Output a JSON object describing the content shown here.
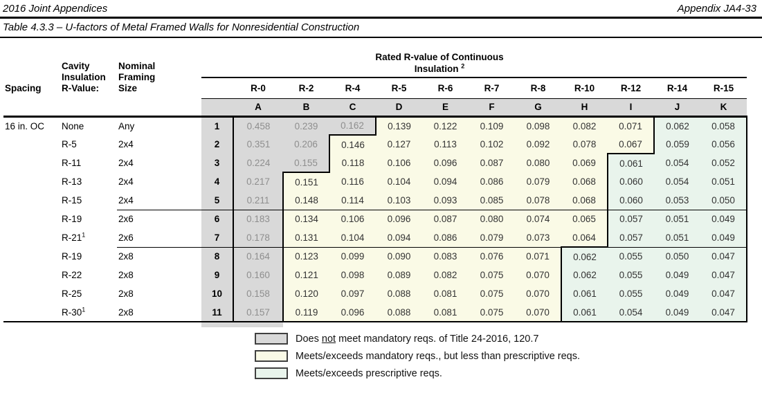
{
  "page": {
    "doc_header_left": "2016 Joint Appendices",
    "doc_header_right": "Appendix JA4-33",
    "table_title": "Table 4.3.3 – U-factors of Metal Framed Walls for Nonresidential Construction"
  },
  "table": {
    "left_headers": {
      "spacing": "Spacing",
      "cavity_lines": [
        "Cavity",
        "Insulation",
        "R-Value:"
      ],
      "framing_lines": [
        "Nominal",
        "Framing",
        "Size"
      ]
    },
    "band_title_line1": "Rated R-value of Continuous",
    "band_title_line2": "Insulation",
    "band_title_sup": "2",
    "r_labels": [
      "R-0",
      "R-2",
      "R-4",
      "R-5",
      "R-6",
      "R-7",
      "R-8",
      "R-10",
      "R-12",
      "R-14",
      "R-15"
    ],
    "letters": [
      "A",
      "B",
      "C",
      "D",
      "E",
      "F",
      "G",
      "H",
      "I",
      "J",
      "K"
    ],
    "separator_before_rows": [
      5,
      7
    ],
    "rows": [
      {
        "num": "1",
        "spacing": "16 in. OC",
        "cavity": "None",
        "cavity_sup": "",
        "framing": "Any",
        "regions": "gggyyyyyynn",
        "values": [
          "0.458",
          "0.239",
          "0.162",
          "0.139",
          "0.122",
          "0.109",
          "0.098",
          "0.082",
          "0.071",
          "0.062",
          "0.058"
        ]
      },
      {
        "num": "2",
        "spacing": "",
        "cavity": "R-5",
        "cavity_sup": "",
        "framing": "2x4",
        "regions": "ggyyyyyyynn",
        "values": [
          "0.351",
          "0.206",
          "0.146",
          "0.127",
          "0.113",
          "0.102",
          "0.092",
          "0.078",
          "0.067",
          "0.059",
          "0.056"
        ]
      },
      {
        "num": "3",
        "spacing": "",
        "cavity": "R-11",
        "cavity_sup": "",
        "framing": "2x4",
        "regions": "ggyyyyyynnn",
        "values": [
          "0.224",
          "0.155",
          "0.118",
          "0.106",
          "0.096",
          "0.087",
          "0.080",
          "0.069",
          "0.061",
          "0.054",
          "0.052"
        ]
      },
      {
        "num": "4",
        "spacing": "",
        "cavity": "R-13",
        "cavity_sup": "",
        "framing": "2x4",
        "regions": "gyyyyyyynnn",
        "values": [
          "0.217",
          "0.151",
          "0.116",
          "0.104",
          "0.094",
          "0.086",
          "0.079",
          "0.068",
          "0.060",
          "0.054",
          "0.051"
        ]
      },
      {
        "num": "5",
        "spacing": "",
        "cavity": "R-15",
        "cavity_sup": "",
        "framing": "2x4",
        "regions": "gyyyyyyynnn",
        "values": [
          "0.211",
          "0.148",
          "0.114",
          "0.103",
          "0.093",
          "0.085",
          "0.078",
          "0.068",
          "0.060",
          "0.053",
          "0.050"
        ]
      },
      {
        "num": "6",
        "spacing": "",
        "cavity": "R-19",
        "cavity_sup": "",
        "framing": "2x6",
        "regions": "gyyyyyyynnn",
        "values": [
          "0.183",
          "0.134",
          "0.106",
          "0.096",
          "0.087",
          "0.080",
          "0.074",
          "0.065",
          "0.057",
          "0.051",
          "0.049"
        ]
      },
      {
        "num": "7",
        "spacing": "",
        "cavity": "R-21",
        "cavity_sup": "1",
        "framing": "2x6",
        "regions": "gyyyyyyynnn",
        "values": [
          "0.178",
          "0.131",
          "0.104",
          "0.094",
          "0.086",
          "0.079",
          "0.073",
          "0.064",
          "0.057",
          "0.051",
          "0.049"
        ]
      },
      {
        "num": "8",
        "spacing": "",
        "cavity": "R-19",
        "cavity_sup": "",
        "framing": "2x8",
        "regions": "gyyyyyynnnn",
        "values": [
          "0.164",
          "0.123",
          "0.099",
          "0.090",
          "0.083",
          "0.076",
          "0.071",
          "0.062",
          "0.055",
          "0.050",
          "0.047"
        ]
      },
      {
        "num": "9",
        "spacing": "",
        "cavity": "R-22",
        "cavity_sup": "",
        "framing": "2x8",
        "regions": "gyyyyyynnnn",
        "values": [
          "0.160",
          "0.121",
          "0.098",
          "0.089",
          "0.082",
          "0.075",
          "0.070",
          "0.062",
          "0.055",
          "0.049",
          "0.047"
        ]
      },
      {
        "num": "10",
        "spacing": "",
        "cavity": "R-25",
        "cavity_sup": "",
        "framing": "2x8",
        "regions": "gyyyyyynnnn",
        "values": [
          "0.158",
          "0.120",
          "0.097",
          "0.088",
          "0.081",
          "0.075",
          "0.070",
          "0.061",
          "0.055",
          "0.049",
          "0.047"
        ]
      },
      {
        "num": "11",
        "spacing": "",
        "cavity": "R-30",
        "cavity_sup": "1",
        "framing": "2x8",
        "regions": "gyyyyyynnnn",
        "values": [
          "0.157",
          "0.119",
          "0.096",
          "0.088",
          "0.081",
          "0.075",
          "0.070",
          "0.061",
          "0.054",
          "0.049",
          "0.047"
        ]
      }
    ]
  },
  "legend": {
    "items": [
      {
        "color_key": "g",
        "text_prefix": "Does ",
        "text_underlined": "not",
        "text_suffix": " meet mandatory reqs. of Title 24-2016, 120.7"
      },
      {
        "color_key": "y",
        "text": "Meets/exceeds mandatory reqs., but less than prescriptive reqs."
      },
      {
        "color_key": "n",
        "text": "Meets/exceeds prescriptive reqs."
      }
    ]
  },
  "colors": {
    "region_fills": {
      "g": "#d9d9d9",
      "y": "#fafae6",
      "n": "#e9f4ec"
    },
    "header_gray": "#d9d9d9",
    "muted_value_text": "#8e8e8e",
    "border_black": "#000000"
  }
}
